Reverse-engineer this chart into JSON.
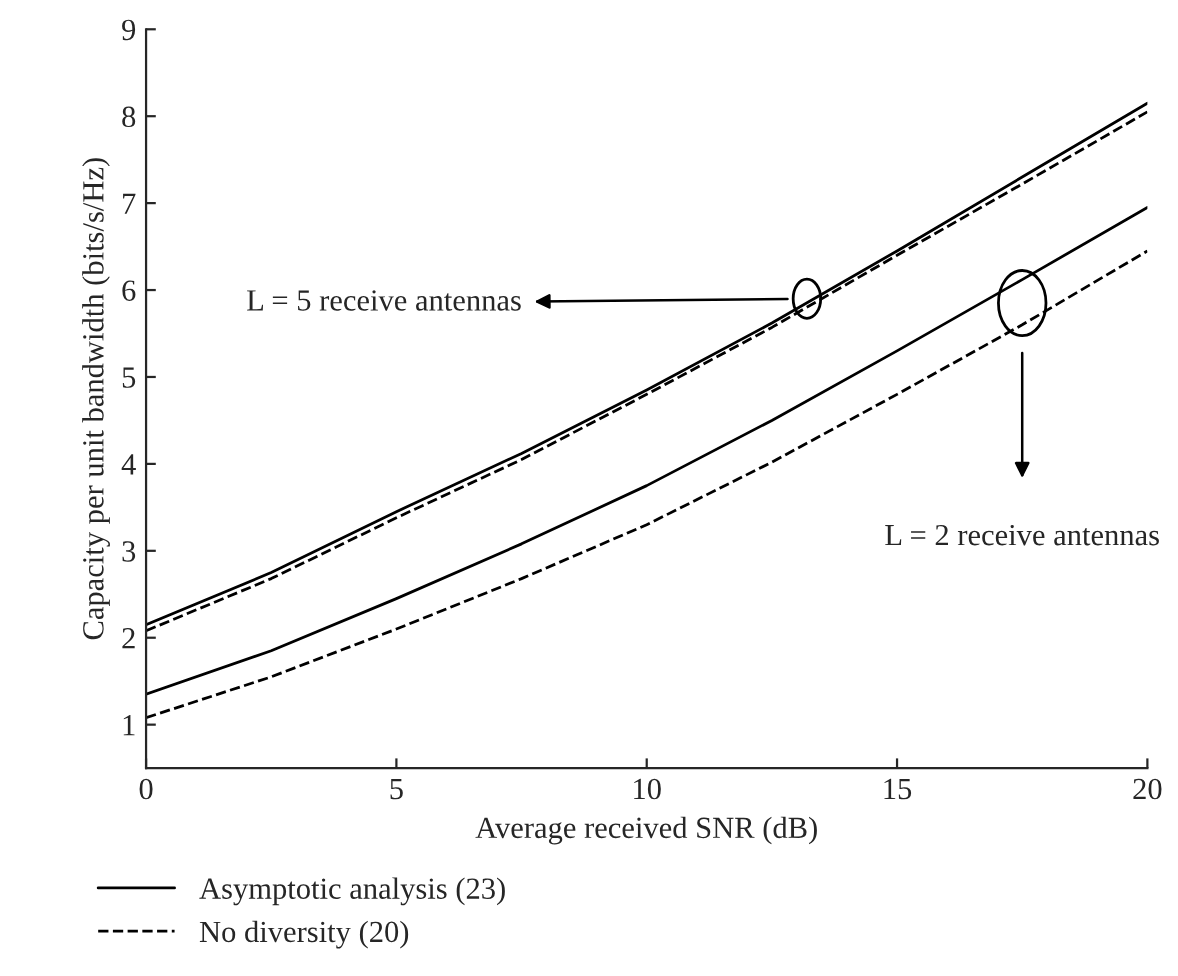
{
  "chart_data": {
    "type": "line",
    "xlabel": "Average received SNR (dB)",
    "ylabel": "Capacity per unit bandwidth (bits/s/Hz)",
    "x": [
      0,
      2.5,
      5,
      7.5,
      10,
      12.5,
      15,
      17.5,
      20
    ],
    "series": [
      {
        "name": "Asymptotic analysis (23)",
        "color": "#000000",
        "line_style": "solid",
        "values": [
          2.15,
          2.75,
          3.45,
          4.12,
          4.85,
          5.62,
          6.45,
          7.3,
          8.15
        ]
      },
      {
        "name": "No diversity (20)",
        "color": "#000000",
        "line_style": "dashed",
        "values": [
          2.08,
          2.68,
          3.38,
          4.05,
          4.8,
          5.57,
          6.4,
          7.22,
          8.05
        ]
      },
      {
        "color": "#000000",
        "line_style": "solid",
        "values": [
          1.35,
          1.85,
          2.45,
          3.08,
          3.75,
          4.5,
          5.3,
          6.12,
          6.95
        ]
      },
      {
        "color": "#000000",
        "line_style": "dashed",
        "values": [
          1.08,
          1.55,
          2.1,
          2.68,
          3.3,
          4.02,
          4.8,
          5.6,
          6.45
        ]
      }
    ],
    "xlim": [
      0,
      20
    ],
    "xticks": [
      0,
      5,
      10,
      15,
      20
    ],
    "ylim": [
      0.5,
      9
    ],
    "yticks": [
      1,
      2,
      3,
      4,
      5,
      6,
      7,
      8,
      9
    ],
    "annotations": [
      "L = 5 receive antennas",
      "L = 2 receive antennas"
    ],
    "grid": false,
    "legend": "bottom",
    "marker": "none"
  }
}
